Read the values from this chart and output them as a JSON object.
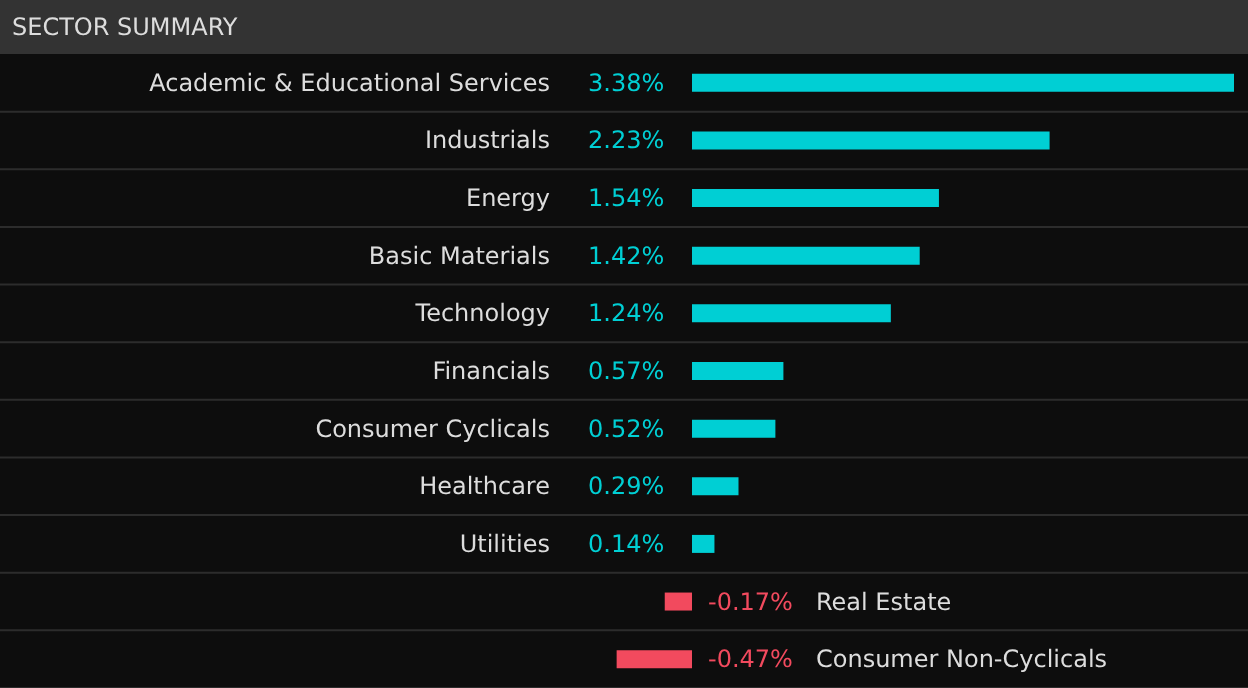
{
  "chart_data": {
    "type": "bar",
    "orientation": "horizontal",
    "title": "SECTOR SUMMARY",
    "categories": [
      "Academic & Educational Services",
      "Industrials",
      "Energy",
      "Basic Materials",
      "Technology",
      "Financials",
      "Consumer Cyclicals",
      "Healthcare",
      "Utilities",
      "Real Estate",
      "Consumer Non-Cyclicals"
    ],
    "values": [
      3.38,
      2.23,
      1.54,
      1.42,
      1.24,
      0.57,
      0.52,
      0.29,
      0.14,
      -0.17,
      -0.47
    ],
    "value_labels": [
      "3.38%",
      "2.23%",
      "1.54%",
      "1.42%",
      "1.24%",
      "0.57%",
      "0.52%",
      "0.29%",
      "0.14%",
      "-0.17%",
      "-0.47%"
    ],
    "colors": [
      "#00cfd4",
      "#00cfd4",
      "#00cfd4",
      "#00cfd4",
      "#00cfd4",
      "#00cfd4",
      "#00cfd4",
      "#00cfd4",
      "#00cfd4",
      "#f24a5e",
      "#f24a5e"
    ],
    "grid": "y"
  }
}
